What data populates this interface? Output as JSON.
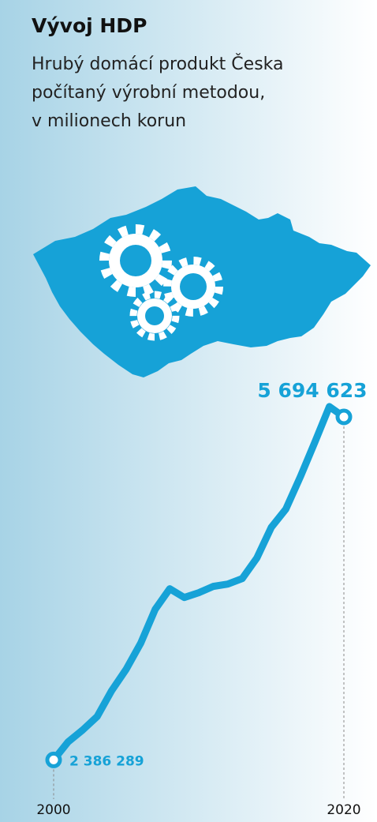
{
  "chart_data": {
    "type": "line",
    "title": "Vývoj HDP",
    "subtitle": [
      "Hrubý domácí produkt Česka",
      "počítaný výrobní metodou,",
      "v milionech korun"
    ],
    "x": [
      2000,
      2001,
      2002,
      2003,
      2004,
      2005,
      2006,
      2007,
      2008,
      2009,
      2010,
      2011,
      2012,
      2013,
      2014,
      2015,
      2016,
      2017,
      2018,
      2019,
      2020
    ],
    "values": [
      2386289,
      2561000,
      2675000,
      2805000,
      3055000,
      3261000,
      3512000,
      3839000,
      4037000,
      3953000,
      3999000,
      4060000,
      4082000,
      4136000,
      4333000,
      4630000,
      4805000,
      5117000,
      5451000,
      5794000,
      5694623
    ],
    "value_labels": [
      "2 386 289",
      null,
      null,
      null,
      null,
      null,
      null,
      null,
      null,
      null,
      null,
      null,
      null,
      null,
      null,
      null,
      null,
      null,
      null,
      null,
      "5 694 623"
    ],
    "color": "#16a2d7",
    "xlim": [
      2000,
      2020
    ],
    "xticks": [
      2000,
      2020
    ],
    "ylim": [
      2100000,
      6060000
    ]
  }
}
